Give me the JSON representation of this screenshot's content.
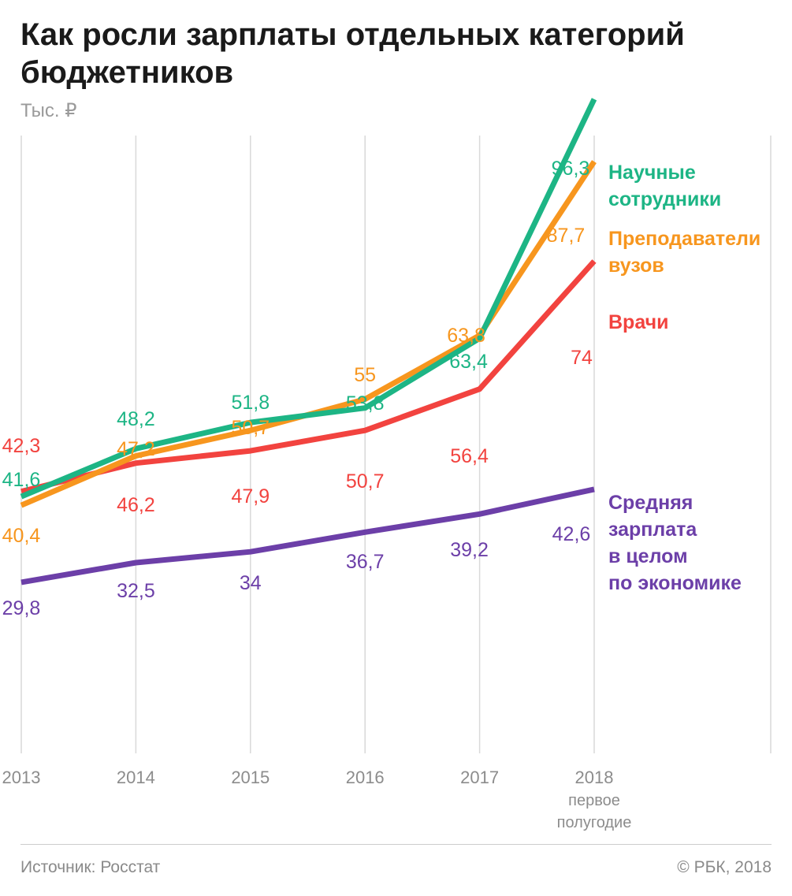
{
  "header": {
    "title": "Как росли зарплаты отдельных категорий бюджетников",
    "unit": "Тыс. ₽"
  },
  "footer": {
    "source": "Источник: Росстат",
    "copyright": "© РБК, 2018"
  },
  "chart_data": {
    "type": "line",
    "title": "Как росли зарплаты отдельных категорий бюджетников",
    "ylabel": "Тыс. ₽",
    "ylim": [
      0,
      100
    ],
    "grid": "vertical",
    "legend": "right, labels at line ends",
    "x": [
      "2013",
      "2014",
      "2015",
      "2016",
      "2017",
      "2018"
    ],
    "x_sublabels": {
      "2018": [
        "первое",
        "полугодие"
      ]
    },
    "series": [
      {
        "name": "Научные сотрудники",
        "color": "#1db585",
        "values": [
          41.6,
          48.2,
          51.8,
          53.8,
          63.4,
          96.3
        ],
        "labels": [
          "41,6",
          "48,2",
          "51,8",
          "53,8",
          "63,4",
          "96,3"
        ]
      },
      {
        "name": "Преподаватели вузов",
        "color": "#f7961e",
        "values": [
          40.4,
          47.2,
          50.7,
          55,
          63.8,
          87.7
        ],
        "labels": [
          "40,4",
          "47,2",
          "50,7",
          "55",
          "63,8",
          "87,7"
        ]
      },
      {
        "name": "Врачи",
        "color": "#f2433f",
        "values": [
          42.3,
          46.2,
          47.9,
          50.7,
          56.4,
          74
        ],
        "labels": [
          "42,3",
          "46,2",
          "47,9",
          "50,7",
          "56,4",
          "74"
        ]
      },
      {
        "name": "Средняя зарплата в целом по экономике",
        "color": "#6c3fa8",
        "values": [
          29.8,
          32.5,
          34,
          36.7,
          39.2,
          42.6
        ],
        "labels": [
          "29,8",
          "32,5",
          "34",
          "36,7",
          "39,2",
          "42,6"
        ]
      }
    ],
    "legend_labels": [
      {
        "series": 0,
        "lines": [
          "Научные",
          "сотрудники"
        ]
      },
      {
        "series": 1,
        "lines": [
          "Преподаватели",
          "вузов"
        ]
      },
      {
        "series": 2,
        "lines": [
          "Врачи"
        ]
      },
      {
        "series": 3,
        "lines": [
          "Средняя",
          "зарплата",
          "в целом",
          "по экономике"
        ]
      }
    ]
  }
}
